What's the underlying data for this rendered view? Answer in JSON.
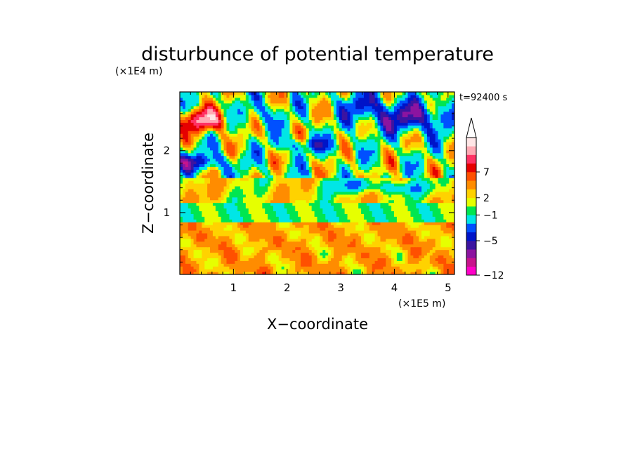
{
  "chart_data": {
    "type": "heatmap",
    "title": "disturbunce of potential temperature",
    "xlabel": "X−coordinate",
    "ylabel": "Z−coordinate",
    "x_unit": "(×1E5 m)",
    "y_unit": "(×1E4 m)",
    "time_label": "t=92400 s",
    "xlim": [
      0,
      5.12
    ],
    "ylim": [
      0,
      2.95
    ],
    "x_ticks": [
      1,
      2,
      3,
      4,
      5
    ],
    "x_tick_labels": [
      "1",
      "2",
      "3",
      "4",
      "5"
    ],
    "y_ticks": [
      1,
      2
    ],
    "y_tick_labels": [
      "1",
      "2"
    ],
    "colorbar": {
      "levels": [
        "-12",
        "",
        "",
        "",
        "-5",
        "",
        "",
        "-1",
        "",
        "2",
        "",
        "",
        "7",
        "",
        ""
      ],
      "labeled_levels": [
        "7",
        "2",
        "−1",
        "−5",
        "−12"
      ],
      "colors": [
        "#ff00c8",
        "#c8148c",
        "#8c14a0",
        "#3c14a0",
        "#0014c8",
        "#0050ff",
        "#00e6e6",
        "#00e650",
        "#e6ff00",
        "#ffd200",
        "#ff8c00",
        "#ff5000",
        "#e60000",
        "#ff3264",
        "#ffaab4",
        "#ffe6e6"
      ],
      "extend": "max"
    },
    "regions": [
      {
        "name": "warm-anomaly-upper-left",
        "x": [
          0.1,
          0.9
        ],
        "z": [
          2.3,
          2.75
        ],
        "value": 10
      },
      {
        "name": "cold-layer-left",
        "x": [
          0.0,
          0.8
        ],
        "z": [
          1.7,
          2.1
        ],
        "value": -5
      },
      {
        "name": "cold-band-upper-right",
        "x": [
          3.0,
          5.1
        ],
        "z": [
          2.2,
          2.9
        ],
        "value": -6
      },
      {
        "name": "neutral-band-mid",
        "x": [
          0.0,
          5.12
        ],
        "z": [
          0.9,
          1.4
        ],
        "value": -1
      },
      {
        "name": "warm-lower-layer",
        "x": [
          0.0,
          5.12
        ],
        "z": [
          0.0,
          0.8
        ],
        "value": 2
      }
    ]
  }
}
